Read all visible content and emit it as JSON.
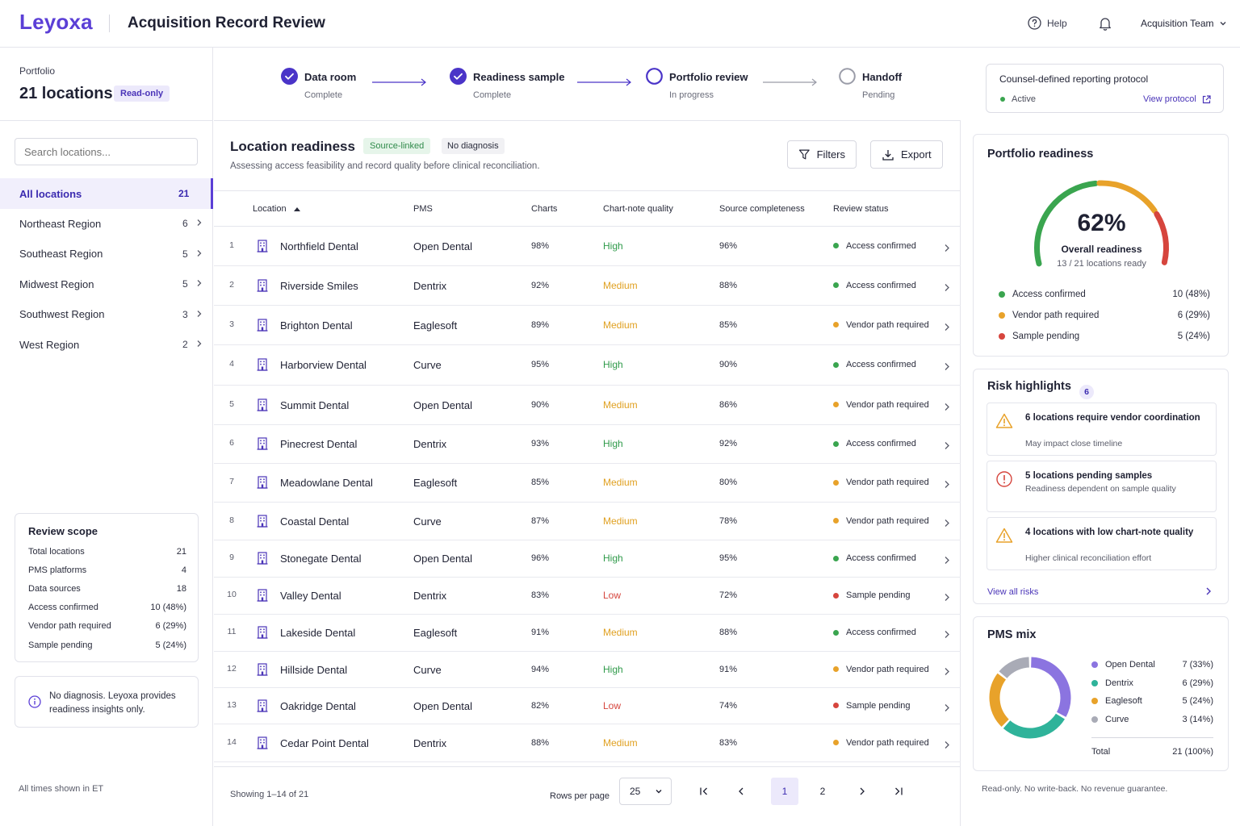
{
  "header": {
    "logo": "Leyoxa",
    "title": "Acquisition Record Review",
    "help_label": "Help",
    "team_label": "Acquisition Team"
  },
  "sidebar": {
    "portfolio_label": "Portfolio",
    "location_count": "21 locations",
    "read_only_badge": "Read-only",
    "search_placeholder": "Search locations...",
    "regions": [
      {
        "label": "All locations",
        "count": "21",
        "active": true
      },
      {
        "label": "Northeast Region",
        "count": "6"
      },
      {
        "label": "Southeast Region",
        "count": "5"
      },
      {
        "label": "Midwest Region",
        "count": "5"
      },
      {
        "label": "Southwest Region",
        "count": "3"
      },
      {
        "label": "West Region",
        "count": "2"
      }
    ],
    "scope": {
      "title": "Review scope",
      "rows": [
        {
          "label": "Total locations",
          "value": "21"
        },
        {
          "label": "PMS platforms",
          "value": "4"
        },
        {
          "label": "Data sources",
          "value": "18"
        },
        {
          "label": "Access confirmed",
          "value": "10 (48%)"
        },
        {
          "label": "Vendor path required",
          "value": "6 (29%)"
        },
        {
          "label": "Sample pending",
          "value": "5 (24%)"
        }
      ]
    },
    "note": "No diagnosis. Leyoxa provides readiness insights only.",
    "footer": "All times shown in ET"
  },
  "stepper": [
    {
      "label": "Data room",
      "status": "Complete",
      "state": "done"
    },
    {
      "label": "Readiness sample",
      "status": "Complete",
      "state": "done"
    },
    {
      "label": "Portfolio review",
      "status": "In progress",
      "state": "current"
    },
    {
      "label": "Handoff",
      "status": "Pending",
      "state": "pending"
    }
  ],
  "protocol": {
    "title": "Counsel-defined reporting protocol",
    "status": "Active",
    "link": "View protocol"
  },
  "main": {
    "title": "Location readiness",
    "badge_source": "Source-linked",
    "badge_nodiag": "No diagnosis",
    "subtitle": "Assessing access feasibility and record quality before clinical reconciliation.",
    "filters_label": "Filters",
    "export_label": "Export",
    "columns": {
      "location": "Location",
      "pms": "PMS",
      "charts": "Charts",
      "quality": "Chart-note quality",
      "completeness": "Source completeness",
      "status": "Review status"
    },
    "rows": [
      {
        "n": "1",
        "location": "Northfield Dental",
        "pms": "Open Dental",
        "charts": "98%",
        "quality": "High",
        "completeness": "96%",
        "status": "Access confirmed"
      },
      {
        "n": "2",
        "location": "Riverside Smiles",
        "pms": "Dentrix",
        "charts": "92%",
        "quality": "Medium",
        "completeness": "88%",
        "status": "Access confirmed"
      },
      {
        "n": "3",
        "location": "Brighton Dental",
        "pms": "Eaglesoft",
        "charts": "89%",
        "quality": "Medium",
        "completeness": "85%",
        "status": "Vendor path required"
      },
      {
        "n": "4",
        "location": "Harborview Dental",
        "pms": "Curve",
        "charts": "95%",
        "quality": "High",
        "completeness": "90%",
        "status": "Access confirmed"
      },
      {
        "n": "5",
        "location": "Summit Dental",
        "pms": "Open Dental",
        "charts": "90%",
        "quality": "Medium",
        "completeness": "86%",
        "status": "Vendor path required"
      },
      {
        "n": "6",
        "location": "Pinecrest Dental",
        "pms": "Dentrix",
        "charts": "93%",
        "quality": "High",
        "completeness": "92%",
        "status": "Access confirmed"
      },
      {
        "n": "7",
        "location": "Meadowlane Dental",
        "pms": "Eaglesoft",
        "charts": "85%",
        "quality": "Medium",
        "completeness": "80%",
        "status": "Vendor path required"
      },
      {
        "n": "8",
        "location": "Coastal Dental",
        "pms": "Curve",
        "charts": "87%",
        "quality": "Medium",
        "completeness": "78%",
        "status": "Vendor path required"
      },
      {
        "n": "9",
        "location": "Stonegate Dental",
        "pms": "Open Dental",
        "charts": "96%",
        "quality": "High",
        "completeness": "95%",
        "status": "Access confirmed"
      },
      {
        "n": "10",
        "location": "Valley Dental",
        "pms": "Dentrix",
        "charts": "83%",
        "quality": "Low",
        "completeness": "72%",
        "status": "Sample pending"
      },
      {
        "n": "11",
        "location": "Lakeside Dental",
        "pms": "Eaglesoft",
        "charts": "91%",
        "quality": "Medium",
        "completeness": "88%",
        "status": "Access confirmed"
      },
      {
        "n": "12",
        "location": "Hillside Dental",
        "pms": "Curve",
        "charts": "94%",
        "quality": "High",
        "completeness": "91%",
        "status": "Vendor path required"
      },
      {
        "n": "13",
        "location": "Oakridge Dental",
        "pms": "Open Dental",
        "charts": "82%",
        "quality": "Low",
        "completeness": "74%",
        "status": "Sample pending"
      },
      {
        "n": "14",
        "location": "Cedar Point Dental",
        "pms": "Dentrix",
        "charts": "88%",
        "quality": "Medium",
        "completeness": "83%",
        "status": "Vendor path required"
      }
    ],
    "pagination": {
      "showing": "Showing 1–14 of 21",
      "rows_per_page_label": "Rows per page",
      "rows_per_page": "25",
      "pages": [
        "1",
        "2"
      ],
      "current": "1"
    }
  },
  "readiness": {
    "title": "Portfolio readiness",
    "percent": "62%",
    "percent_value": 62,
    "label": "Overall readiness",
    "sublabel": "13 / 21 locations ready",
    "legend": [
      {
        "label": "Access confirmed",
        "value": "10 (48%)",
        "color": "#3aa54f"
      },
      {
        "label": "Vendor path required",
        "value": "6 (29%)",
        "color": "#e8a22a"
      },
      {
        "label": "Sample pending",
        "value": "5 (24%)",
        "color": "#d6453d"
      }
    ]
  },
  "risks": {
    "title": "Risk highlights",
    "count": "6",
    "items": [
      {
        "title": "6 locations require vendor coordination",
        "desc": "May impact close timeline",
        "icon": "warning-triangle-icon"
      },
      {
        "title": "5 locations pending samples",
        "desc": "Readiness dependent on sample quality",
        "icon": "alert-circle-icon"
      },
      {
        "title": "4 locations with low chart-note quality",
        "desc": "Higher clinical reconciliation effort",
        "icon": "warning-triangle-icon"
      }
    ],
    "view_all": "View all risks"
  },
  "pms_mix": {
    "title": "PMS mix",
    "items": [
      {
        "label": "Open Dental",
        "value": "7 (33%)",
        "count": 7,
        "color": "#8b74e0"
      },
      {
        "label": "Dentrix",
        "value": "6 (29%)",
        "count": 6,
        "color": "#2fb39a"
      },
      {
        "label": "Eaglesoft",
        "value": "5 (24%)",
        "count": 5,
        "color": "#e8a22a"
      },
      {
        "label": "Curve",
        "value": "3 (14%)",
        "count": 3,
        "color": "#a9abb6"
      }
    ],
    "total_label": "Total",
    "total_value": "21 (100%)"
  },
  "footer_right": "Read-only. No write-back. No revenue guarantee.",
  "colors": {
    "accent": "#5b3fd6",
    "status_access": "#3aa54f",
    "status_vendor": "#e8a22a",
    "status_sample": "#d6453d"
  }
}
